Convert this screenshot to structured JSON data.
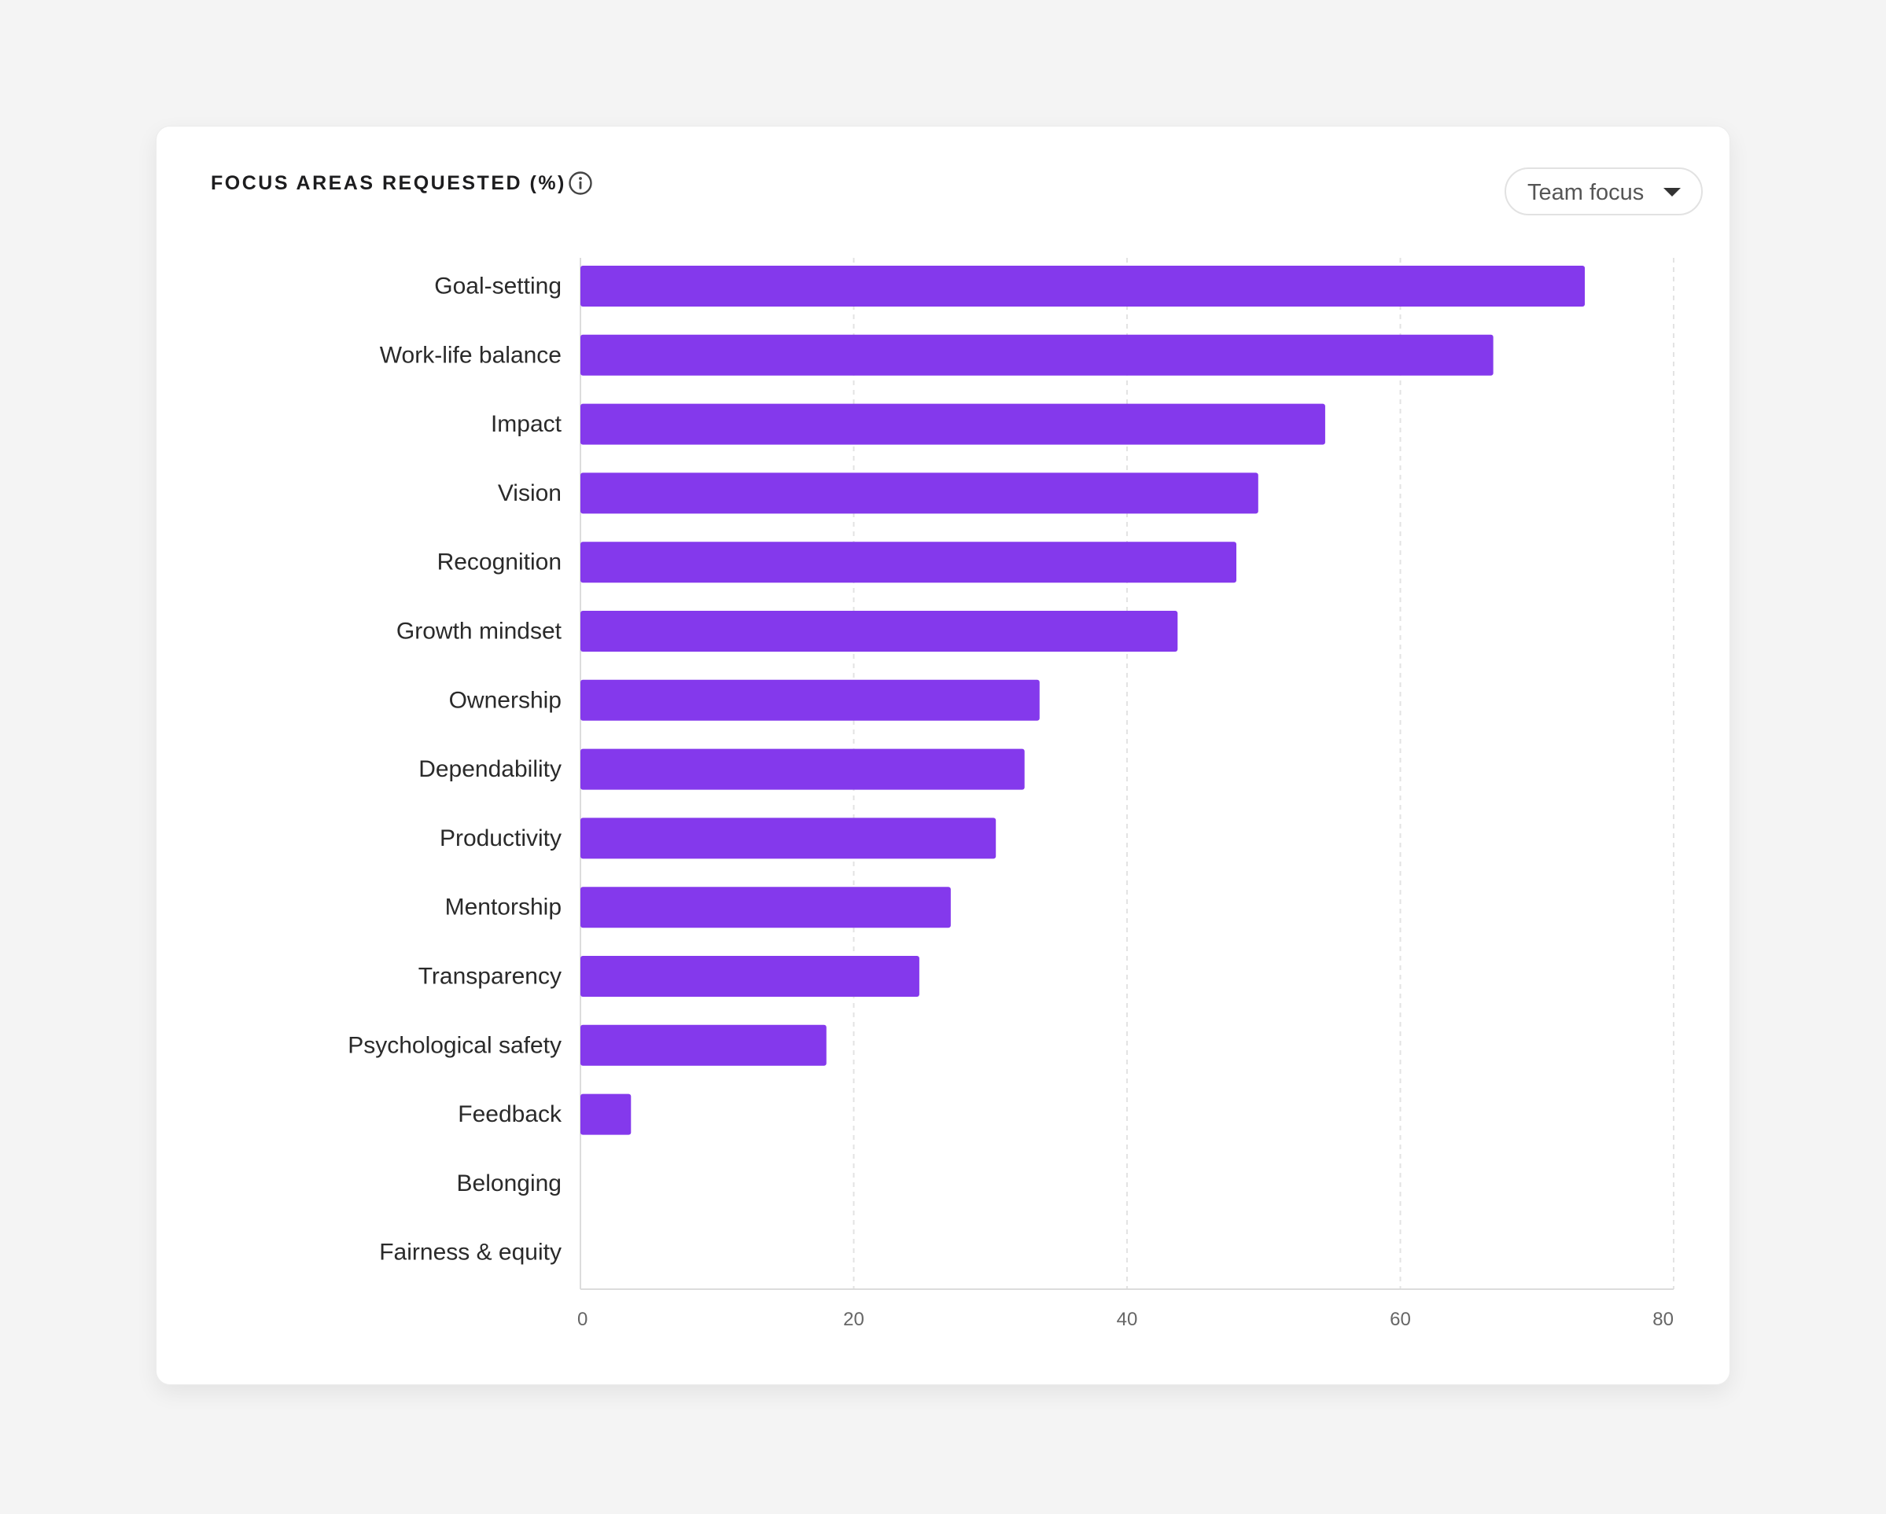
{
  "header": {
    "title": "FOCUS AREAS REQUESTED (%)",
    "info_icon": "info-circle-icon"
  },
  "filter": {
    "selected": "Team focus",
    "icon": "caret-down-icon"
  },
  "colors": {
    "bar": "#8439ec",
    "grid": "#e3e3e3",
    "axis": "#dcdcdc"
  },
  "chart_data": {
    "type": "bar",
    "orientation": "horizontal",
    "title": "FOCUS AREAS REQUESTED (%)",
    "categories": [
      "Goal-setting",
      "Work-life balance",
      "Impact",
      "Vision",
      "Recognition",
      "Growth mindset",
      "Ownership",
      "Dependability",
      "Productivity",
      "Mentorship",
      "Transparency",
      "Psychological safety",
      "Feedback",
      "Belonging",
      "Fairness & equity"
    ],
    "values": [
      73.5,
      66.8,
      54.5,
      49.6,
      48.0,
      43.7,
      33.6,
      32.5,
      30.4,
      27.1,
      24.8,
      18.0,
      3.7,
      0,
      0
    ],
    "xlim": [
      0,
      80
    ],
    "xticks": [
      0,
      20,
      40,
      60,
      80
    ],
    "xtick_labels": [
      "0",
      "20",
      "40",
      "60",
      "80"
    ],
    "grid": true,
    "legend": "none"
  }
}
